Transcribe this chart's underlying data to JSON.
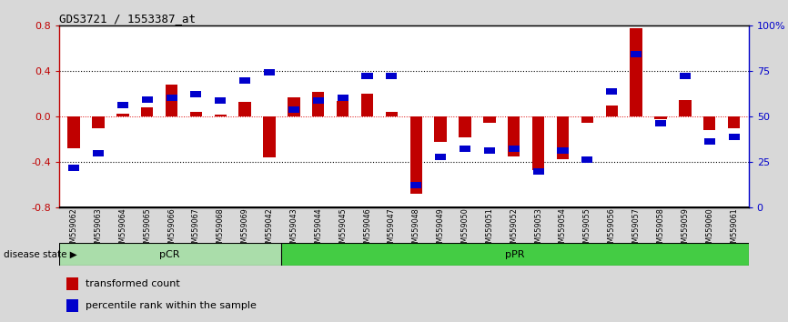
{
  "title": "GDS3721 / 1553387_at",
  "samples": [
    "GSM559062",
    "GSM559063",
    "GSM559064",
    "GSM559065",
    "GSM559066",
    "GSM559067",
    "GSM559068",
    "GSM559069",
    "GSM559042",
    "GSM559043",
    "GSM559044",
    "GSM559045",
    "GSM559046",
    "GSM559047",
    "GSM559048",
    "GSM559049",
    "GSM559050",
    "GSM559051",
    "GSM559052",
    "GSM559053",
    "GSM559054",
    "GSM559055",
    "GSM559056",
    "GSM559057",
    "GSM559058",
    "GSM559059",
    "GSM559060",
    "GSM559061"
  ],
  "red_bars": [
    -0.28,
    -0.1,
    0.03,
    0.08,
    0.28,
    0.04,
    0.02,
    0.13,
    -0.36,
    0.17,
    0.22,
    0.14,
    0.2,
    0.04,
    -0.68,
    -0.22,
    -0.18,
    -0.05,
    -0.35,
    -0.47,
    -0.37,
    -0.05,
    0.1,
    0.78,
    -0.02,
    0.15,
    -0.12,
    -0.1
  ],
  "blue_squares": [
    -0.45,
    -0.32,
    0.1,
    0.15,
    0.17,
    0.2,
    0.14,
    0.32,
    0.39,
    0.06,
    0.14,
    0.17,
    0.36,
    0.36,
    -0.6,
    -0.35,
    -0.28,
    -0.3,
    -0.28,
    -0.48,
    -0.3,
    -0.38,
    0.22,
    0.55,
    -0.06,
    0.36,
    -0.22,
    -0.18
  ],
  "pcr_count": 9,
  "ppr_count": 19,
  "ylim": [
    -0.8,
    0.8
  ],
  "yticks_left": [
    -0.8,
    -0.4,
    0.0,
    0.4,
    0.8
  ],
  "yticks_right": [
    0,
    25,
    50,
    75,
    100
  ],
  "bar_color": "#c00000",
  "square_color": "#0000cc",
  "pcr_color": "#aaddaa",
  "ppr_color": "#44cc44",
  "bg_color": "#d8d8d8",
  "plot_bg": "#ffffff",
  "legend_red": "transformed count",
  "legend_blue": "percentile rank within the sample",
  "disease_state_label": "disease state",
  "pcr_label": "pCR",
  "ppr_label": "pPR"
}
